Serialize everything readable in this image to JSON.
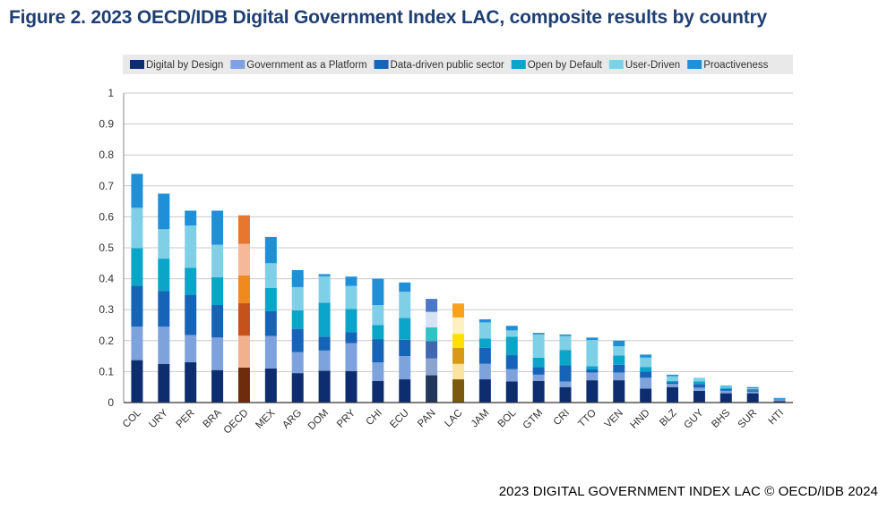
{
  "figure": {
    "title": "Figure  2. 2023 OECD/IDB Digital Government Index LAC, composite results by country",
    "source": "2023 DIGITAL GOVERNMENT INDEX LAC © OECD/IDB 2024"
  },
  "chart_data": {
    "type": "bar",
    "stacked": true,
    "title": "",
    "xlabel": "",
    "ylabel": "",
    "ylim": [
      0,
      1
    ],
    "yticks": [
      "0",
      "0.1",
      "0.2",
      "0.3",
      "0.4",
      "0.5",
      "0.6",
      "0.7",
      "0.8",
      "0.9",
      "1"
    ],
    "grid": true,
    "legend_position": "top",
    "categories": [
      "COL",
      "URY",
      "PER",
      "BRA",
      "OECD",
      "MEX",
      "ARG",
      "DOM",
      "PRY",
      "CHI",
      "ECU",
      "PAN",
      "LAC",
      "JAM",
      "BOL",
      "GTM",
      "CRI",
      "TTO",
      "VEN",
      "HND",
      "BLZ",
      "GUY",
      "BHS",
      "SUR",
      "HTI"
    ],
    "series": [
      {
        "name": "Digital by Design",
        "color": "#0d2d6e",
        "values": [
          0.137,
          0.125,
          0.13,
          0.105,
          0.113,
          0.11,
          0.095,
          0.103,
          0.102,
          0.07,
          0.075,
          0.088,
          0.075,
          0.075,
          0.068,
          0.07,
          0.05,
          0.072,
          0.072,
          0.045,
          0.05,
          0.038,
          0.03,
          0.03,
          0.005
        ]
      },
      {
        "name": "Government as a Platform",
        "color": "#7ea3dc",
        "values": [
          0.108,
          0.12,
          0.088,
          0.105,
          0.103,
          0.105,
          0.068,
          0.065,
          0.09,
          0.06,
          0.075,
          0.055,
          0.05,
          0.05,
          0.04,
          0.02,
          0.018,
          0.025,
          0.025,
          0.035,
          0.01,
          0.01,
          0.008,
          0.005,
          0.003
        ]
      },
      {
        "name": "Data-driven public sector",
        "color": "#1664b8",
        "values": [
          0.132,
          0.115,
          0.13,
          0.105,
          0.105,
          0.08,
          0.075,
          0.045,
          0.035,
          0.075,
          0.053,
          0.055,
          0.052,
          0.052,
          0.045,
          0.025,
          0.052,
          0.01,
          0.025,
          0.02,
          0.005,
          0.012,
          0.006,
          0.005,
          0.002
        ]
      },
      {
        "name": "Open by Default",
        "color": "#0aa5c9",
        "values": [
          0.122,
          0.105,
          0.087,
          0.09,
          0.09,
          0.075,
          0.06,
          0.11,
          0.075,
          0.045,
          0.07,
          0.045,
          0.045,
          0.03,
          0.06,
          0.03,
          0.05,
          0.01,
          0.03,
          0.015,
          0.005,
          0.008,
          0.004,
          0.004,
          0.001
        ]
      },
      {
        "name": "User-Driven",
        "color": "#7fcfe6",
        "values": [
          0.13,
          0.095,
          0.137,
          0.105,
          0.102,
          0.08,
          0.075,
          0.085,
          0.075,
          0.065,
          0.085,
          0.05,
          0.053,
          0.052,
          0.02,
          0.075,
          0.045,
          0.085,
          0.03,
          0.03,
          0.015,
          0.012,
          0.005,
          0.002,
          0.001
        ]
      },
      {
        "name": "Proactiveness",
        "color": "#1f8fd8",
        "values": [
          0.11,
          0.115,
          0.048,
          0.11,
          0.092,
          0.085,
          0.055,
          0.007,
          0.03,
          0.085,
          0.03,
          0.042,
          0.045,
          0.01,
          0.015,
          0.005,
          0.005,
          0.008,
          0.018,
          0.01,
          0.005,
          0.0,
          0.002,
          0.004,
          0.003
        ]
      }
    ],
    "highlight_colors": {
      "OECD": [
        "#6e2c0c",
        "#f3b08d",
        "#c4521a",
        "#f08a1e",
        "#f7b89a",
        "#e8772e"
      ],
      "PAN": [
        "#23365c",
        "#8aa3cf",
        "#4068b0",
        "#33c2c4",
        "#d6e2f5",
        "#4c78c9"
      ],
      "LAC": [
        "#7a5a10",
        "#fbe3a0",
        "#d69a17",
        "#ffdf00",
        "#fff0c2",
        "#f7a21b"
      ]
    }
  }
}
